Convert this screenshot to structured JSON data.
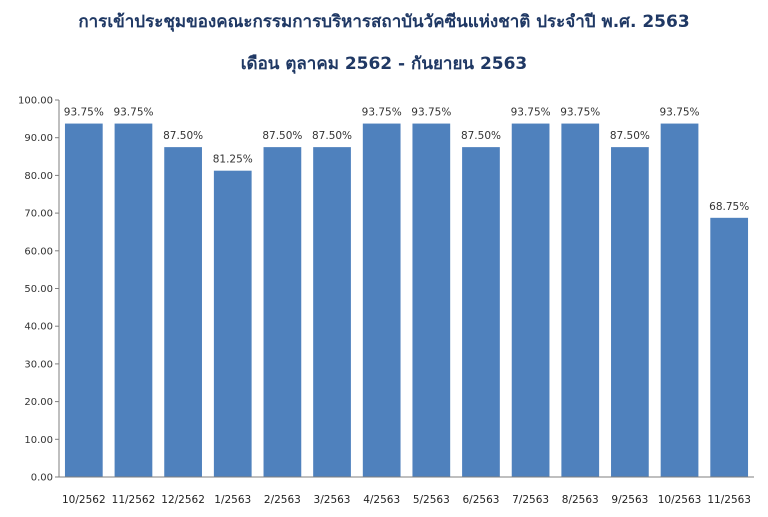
{
  "chart_data": {
    "type": "bar",
    "title": "การเข้าประชุมของคณะกรรมการบริหารสถาบันวัคซีนแห่งชาติ ประจำปี พ.ศ. 2563",
    "subtitle": "เดือน ตุลาคม 2562 - กันยายน 2563",
    "categories": [
      "10/2562",
      "11/2562",
      "12/2562",
      "1/2563",
      "2/2563",
      "3/2563",
      "4/2563",
      "5/2563",
      "6/2563",
      "7/2563",
      "8/2563",
      "9/2563",
      "10/2563",
      "11/2563"
    ],
    "values": [
      93.75,
      93.75,
      87.5,
      81.25,
      87.5,
      87.5,
      93.75,
      93.75,
      87.5,
      93.75,
      93.75,
      87.5,
      93.75,
      68.75
    ],
    "data_labels": [
      "93.75%",
      "93.75%",
      "87.50%",
      "81.25%",
      "87.50%",
      "87.50%",
      "93.75%",
      "93.75%",
      "87.50%",
      "93.75%",
      "93.75%",
      "87.50%",
      "93.75%",
      "68.75%"
    ],
    "yticks": [
      "0.00",
      "10.00",
      "20.00",
      "30.00",
      "40.00",
      "50.00",
      "60.00",
      "70.00",
      "80.00",
      "90.00",
      "100.00"
    ],
    "ylim": [
      0,
      100
    ],
    "xlabel": "",
    "ylabel": "",
    "grid": false,
    "legend": "none",
    "bar_color": "#4f81bd"
  }
}
